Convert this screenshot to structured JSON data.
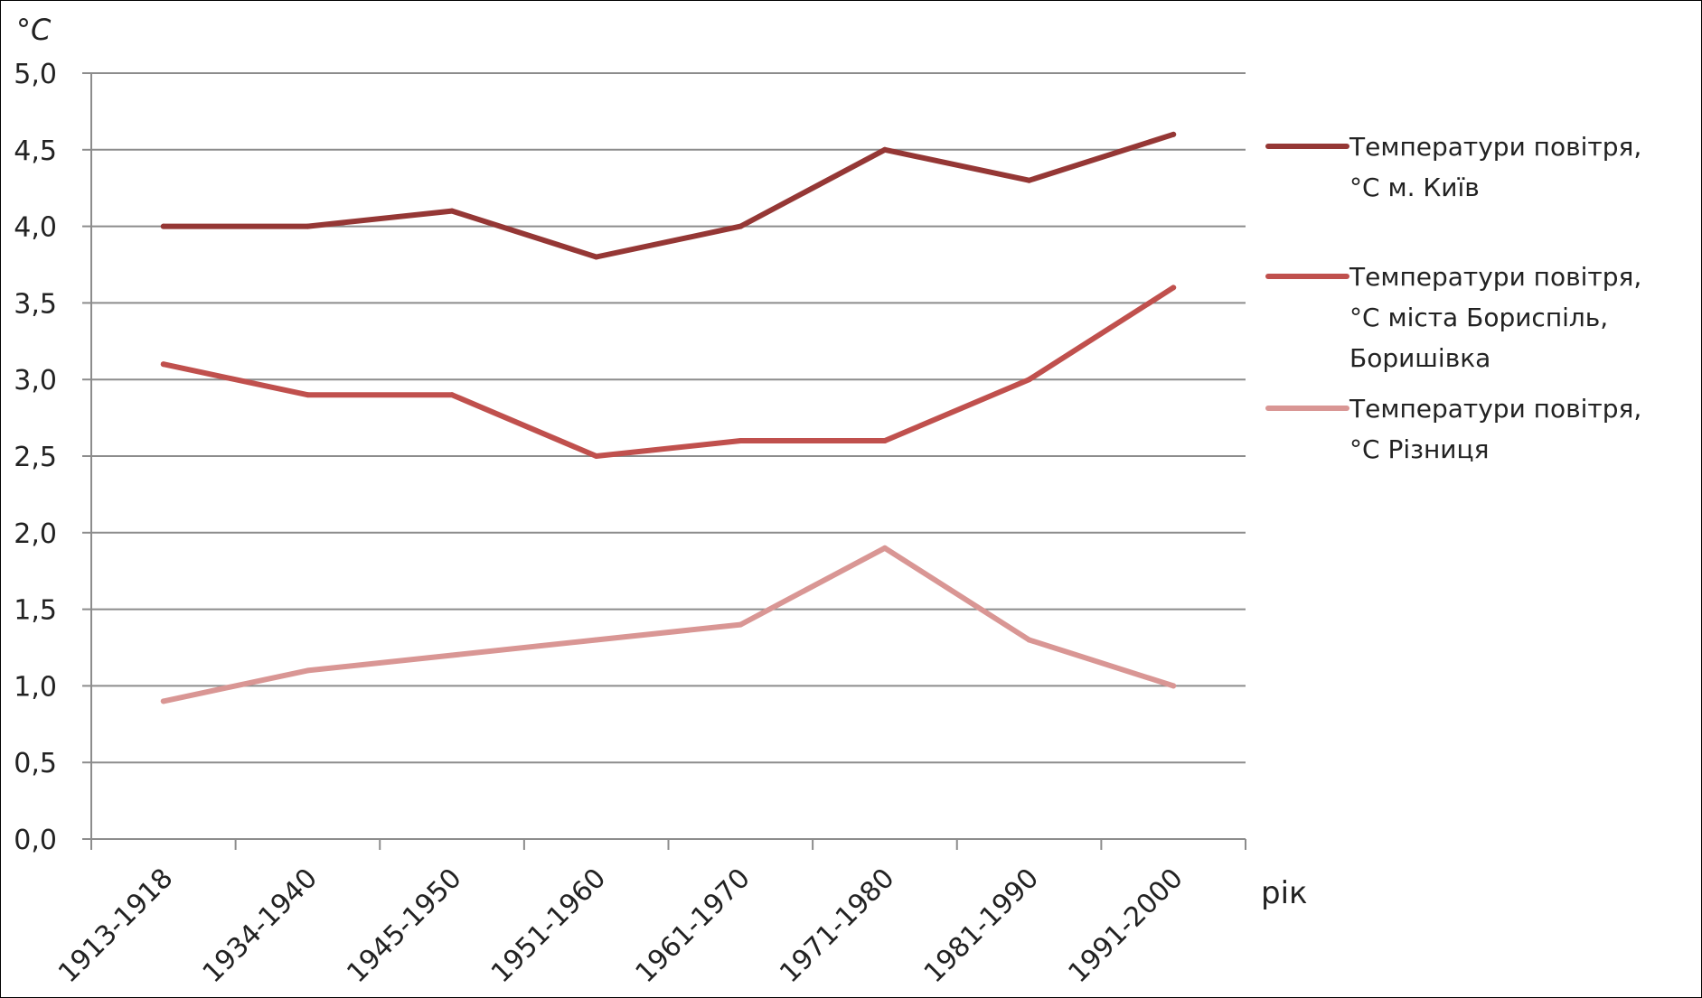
{
  "chart_data": {
    "type": "line",
    "ylabel": "°C",
    "xlabel": "рік",
    "ylim": [
      0,
      5
    ],
    "ytick_values": [
      0,
      0.5,
      1,
      1.5,
      2,
      2.5,
      3,
      3.5,
      4,
      4.5,
      5
    ],
    "ytick_labels": [
      "0,0",
      "0,5",
      "1,0",
      "1,5",
      "2,0",
      "2,5",
      "3,0",
      "3,5",
      "4,0",
      "4,5",
      "5,0"
    ],
    "grid": true,
    "legend_position": "right",
    "categories": [
      "1913-1918",
      "1934-1940",
      "1945-1950",
      "1951-1960",
      "1961-1970",
      "1971-1980",
      "1981-1990",
      "1991-2000"
    ],
    "series": [
      {
        "name": "Температури повітря, °С м. Київ",
        "legend_lines": [
          "Температури повітря,",
          "°С м. Київ"
        ],
        "color": "#953735",
        "values": [
          4.0,
          4.0,
          4.1,
          3.8,
          4.0,
          4.5,
          4.3,
          4.6
        ]
      },
      {
        "name": "Температури повітря, °С міста Бориспіль, Боришівка",
        "legend_lines": [
          "Температури повітря,",
          "°С міста Бориспіль,",
          "Боришівка"
        ],
        "color": "#C0504D",
        "values": [
          3.1,
          2.9,
          2.9,
          2.5,
          2.6,
          2.6,
          3.0,
          3.6
        ]
      },
      {
        "name": "Температури повітря, °С Різниця",
        "legend_lines": [
          "Температури повітря,",
          "°С Різниця"
        ],
        "color": "#D99694",
        "values": [
          0.9,
          1.1,
          1.2,
          1.3,
          1.4,
          1.9,
          1.3,
          1.0
        ]
      }
    ]
  }
}
